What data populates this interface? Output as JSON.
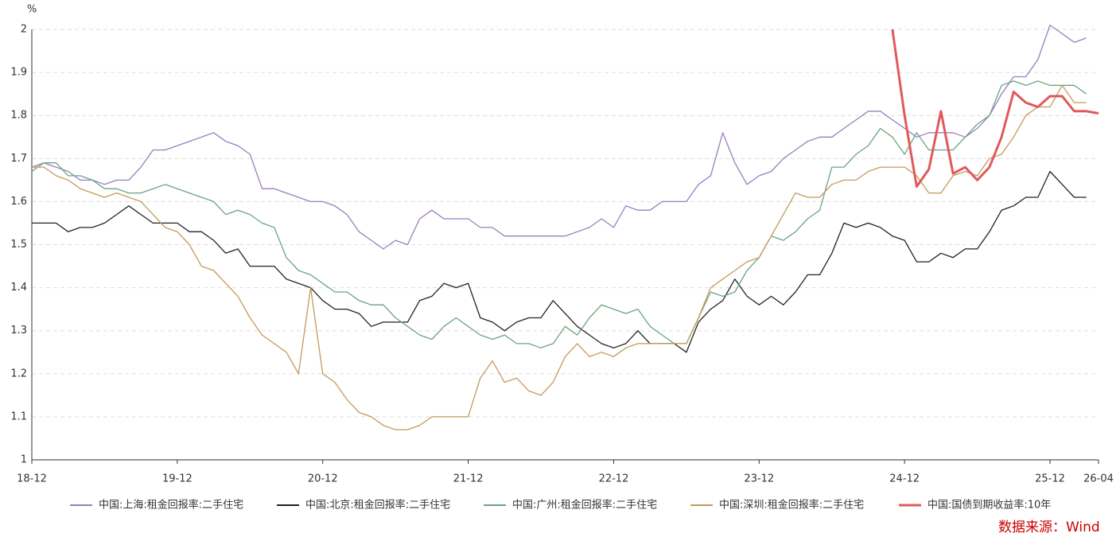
{
  "chart_data": {
    "type": "line",
    "y_label": "%",
    "source": "数据来源：Wind",
    "categories": [
      "18-12",
      null,
      null,
      null,
      null,
      null,
      null,
      null,
      null,
      null,
      null,
      null,
      "19-12",
      null,
      null,
      null,
      null,
      null,
      null,
      null,
      null,
      null,
      null,
      null,
      "20-12",
      null,
      null,
      null,
      null,
      null,
      null,
      null,
      null,
      null,
      null,
      null,
      "21-12",
      null,
      null,
      null,
      null,
      null,
      null,
      null,
      null,
      null,
      null,
      null,
      "22-12",
      null,
      null,
      null,
      null,
      null,
      null,
      null,
      null,
      null,
      null,
      null,
      "23-12",
      null,
      null,
      null,
      null,
      null,
      null,
      null,
      null,
      null,
      null,
      null,
      "24-12",
      null,
      null,
      null,
      null,
      null,
      null,
      null,
      null,
      null,
      null,
      null,
      "25-12",
      null,
      null,
      null,
      "26-04"
    ],
    "ylim": [
      1,
      2
    ],
    "yticks": [
      1,
      1.1,
      1.2,
      1.3,
      1.4,
      1.5,
      1.6,
      1.7,
      1.8,
      1.9,
      2
    ],
    "grid": true,
    "legend": "bottom",
    "series": [
      {
        "name": "中国:上海:租金回报率:二手住宅",
        "color": "#9b7cc0",
        "values": [
          1.68,
          1.69,
          1.68,
          1.67,
          1.65,
          1.65,
          1.64,
          1.65,
          1.65,
          1.68,
          1.72,
          1.72,
          1.73,
          1.74,
          1.75,
          1.76,
          1.74,
          1.73,
          1.71,
          1.63,
          1.63,
          1.62,
          1.61,
          1.6,
          1.6,
          1.59,
          1.57,
          1.53,
          1.51,
          1.49,
          1.51,
          1.5,
          1.56,
          1.58,
          1.56,
          1.56,
          1.56,
          1.54,
          1.54,
          1.52,
          1.52,
          1.52,
          1.52,
          1.52,
          1.52,
          1.53,
          1.54,
          1.56,
          1.54,
          1.59,
          1.58,
          1.58,
          1.6,
          1.6,
          1.6,
          1.64,
          1.66,
          1.76,
          1.69,
          1.64,
          1.66,
          1.67,
          1.7,
          1.72,
          1.74,
          1.75,
          1.75,
          1.77,
          1.79,
          1.81,
          1.81,
          1.79,
          1.77,
          1.75,
          1.76,
          1.76,
          1.76,
          1.75,
          1.77,
          1.8,
          1.85,
          1.89,
          1.89,
          1.93,
          2.01,
          1.99,
          1.97,
          1.98,
          null
        ]
      },
      {
        "name": "中国:北京:租金回报率:二手住宅",
        "color": "#222222",
        "values": [
          1.55,
          1.55,
          1.55,
          1.53,
          1.54,
          1.54,
          1.55,
          1.57,
          1.59,
          1.57,
          1.55,
          1.55,
          1.55,
          1.53,
          1.53,
          1.51,
          1.48,
          1.49,
          1.45,
          1.45,
          1.45,
          1.42,
          1.41,
          1.4,
          1.37,
          1.35,
          1.35,
          1.34,
          1.31,
          1.32,
          1.32,
          1.32,
          1.37,
          1.38,
          1.41,
          1.4,
          1.41,
          1.33,
          1.32,
          1.3,
          1.32,
          1.33,
          1.33,
          1.37,
          1.34,
          1.31,
          1.29,
          1.27,
          1.26,
          1.27,
          1.3,
          1.27,
          1.27,
          1.27,
          1.25,
          1.32,
          1.35,
          1.37,
          1.42,
          1.38,
          1.36,
          1.38,
          1.36,
          1.39,
          1.43,
          1.43,
          1.48,
          1.55,
          1.54,
          1.55,
          1.54,
          1.52,
          1.51,
          1.46,
          1.46,
          1.48,
          1.47,
          1.49,
          1.49,
          1.53,
          1.58,
          1.59,
          1.61,
          1.61,
          1.67,
          1.64,
          1.61,
          1.61,
          null
        ]
      },
      {
        "name": "中国:广州:租金回报率:二手住宅",
        "color": "#6aa57e",
        "values": [
          1.67,
          1.69,
          1.69,
          1.66,
          1.66,
          1.65,
          1.63,
          1.63,
          1.62,
          1.62,
          1.63,
          1.64,
          1.63,
          1.62,
          1.61,
          1.6,
          1.57,
          1.58,
          1.57,
          1.55,
          1.54,
          1.47,
          1.44,
          1.43,
          1.41,
          1.39,
          1.39,
          1.37,
          1.36,
          1.36,
          1.33,
          1.31,
          1.29,
          1.28,
          1.31,
          1.33,
          1.31,
          1.29,
          1.28,
          1.29,
          1.27,
          1.27,
          1.26,
          1.27,
          1.31,
          1.29,
          1.33,
          1.36,
          1.35,
          1.34,
          1.35,
          1.31,
          1.29,
          1.27,
          1.27,
          1.33,
          1.39,
          1.38,
          1.39,
          1.44,
          1.47,
          1.52,
          1.51,
          1.53,
          1.56,
          1.58,
          1.68,
          1.68,
          1.71,
          1.73,
          1.77,
          1.75,
          1.71,
          1.76,
          1.72,
          1.72,
          1.72,
          1.75,
          1.78,
          1.8,
          1.87,
          1.88,
          1.87,
          1.88,
          1.87,
          1.87,
          1.87,
          1.85,
          null
        ]
      },
      {
        "name": "中国:深圳:租金回报率:二手住宅",
        "color": "#c49a5a",
        "values": [
          1.68,
          1.68,
          1.66,
          1.65,
          1.63,
          1.62,
          1.61,
          1.62,
          1.61,
          1.6,
          1.57,
          1.54,
          1.53,
          1.5,
          1.45,
          1.44,
          1.41,
          1.38,
          1.33,
          1.29,
          1.27,
          1.25,
          1.2,
          1.4,
          1.2,
          1.18,
          1.14,
          1.11,
          1.1,
          1.08,
          1.07,
          1.07,
          1.08,
          1.1,
          1.1,
          1.1,
          1.1,
          1.19,
          1.23,
          1.18,
          1.19,
          1.16,
          1.15,
          1.18,
          1.24,
          1.27,
          1.24,
          1.25,
          1.24,
          1.26,
          1.27,
          1.27,
          1.27,
          1.27,
          1.27,
          1.33,
          1.4,
          1.42,
          1.44,
          1.46,
          1.47,
          1.52,
          1.57,
          1.62,
          1.61,
          1.61,
          1.64,
          1.65,
          1.65,
          1.67,
          1.68,
          1.68,
          1.68,
          1.66,
          1.62,
          1.62,
          1.66,
          1.67,
          1.66,
          1.7,
          1.71,
          1.75,
          1.8,
          1.82,
          1.82,
          1.87,
          1.83,
          1.83,
          null
        ]
      },
      {
        "name": "中国:国债到期收益率:10年",
        "color": "#e05a5a",
        "width": 3,
        "values": [
          null,
          null,
          null,
          null,
          null,
          null,
          null,
          null,
          null,
          null,
          null,
          null,
          null,
          null,
          null,
          null,
          null,
          null,
          null,
          null,
          null,
          null,
          null,
          null,
          null,
          null,
          null,
          null,
          null,
          null,
          null,
          null,
          null,
          null,
          null,
          null,
          null,
          null,
          null,
          null,
          null,
          null,
          null,
          null,
          null,
          null,
          null,
          null,
          null,
          null,
          null,
          null,
          null,
          null,
          null,
          null,
          null,
          null,
          null,
          null,
          null,
          null,
          null,
          null,
          null,
          null,
          null,
          null,
          null,
          null,
          null,
          2.0,
          1.8,
          1.635,
          1.675,
          1.81,
          1.665,
          1.68,
          1.65,
          1.68,
          1.75,
          1.855,
          1.83,
          1.82,
          1.845,
          1.845,
          1.81,
          1.81,
          1.805
        ]
      }
    ]
  }
}
